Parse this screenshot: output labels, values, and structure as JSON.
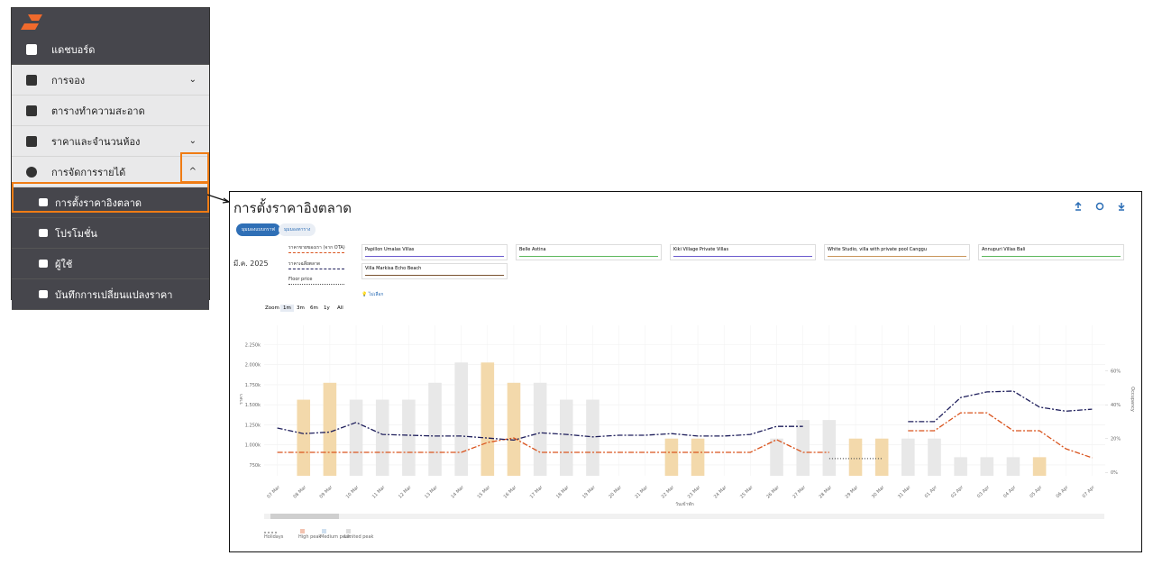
{
  "sidebar": {
    "items": [
      {
        "label": "แดชบอร์ด"
      },
      {
        "label": "การจอง"
      },
      {
        "label": "ตารางทำความสะอาด"
      },
      {
        "label": "ราคาและจำนวนห้อง"
      },
      {
        "label": "การจัดการรายได้"
      },
      {
        "label": "การตั้งราคาอิงตลาด"
      },
      {
        "label": "โปรโมชั่น"
      },
      {
        "label": "ผู้ใช้"
      },
      {
        "label": "บันทึกการเปลี่ยนแปลงราคา"
      }
    ]
  },
  "panel": {
    "title": "การตั้งราคาอิงตลาด",
    "tabs": [
      "มุมมองแบบกราฟ",
      "มุมมองตาราง"
    ],
    "month": "มี.ค. 2025",
    "competitors": [
      {
        "name": "Papillon Umalas Villas",
        "color": "#6a5acd"
      },
      {
        "name": "Belle Astina",
        "color": "#5cb85c"
      },
      {
        "name": "Kiki Village Private Villas",
        "color": "#6a5acd"
      },
      {
        "name": "White Studio, villa with private pool Canggu",
        "color": "#c8955a"
      },
      {
        "name": "Annupuri Villas Bali",
        "color": "#5cb85c"
      },
      {
        "name": "Villa Markisa Echo Beach",
        "color": "#7a5230"
      }
    ],
    "hint": "ไม่เลือก",
    "zoom_label": "Zoom",
    "zoom_options": [
      "1m",
      "3m",
      "6m",
      "1y",
      "All"
    ],
    "bottom_legend": [
      "Holidays",
      "High peak",
      "Medium peak",
      "Limited peak"
    ]
  },
  "chart_data": {
    "type": "bar",
    "categories": [
      "07 Mar",
      "08 Mar",
      "09 Mar",
      "10 Mar",
      "11 Mar",
      "12 Mar",
      "13 Mar",
      "14 Mar",
      "15 Mar",
      "16 Mar",
      "17 Mar",
      "18 Mar",
      "19 Mar",
      "20 Mar",
      "21 Mar",
      "22 Mar",
      "23 Mar",
      "24 Mar",
      "25 Mar",
      "26 Mar",
      "27 Mar",
      "28 Mar",
      "29 Mar",
      "30 Mar",
      "31 Mar",
      "01 Apr",
      "02 Apr",
      "03 Apr",
      "04 Apr",
      "05 Apr",
      "06 Apr",
      "07 Apr"
    ],
    "bars": {
      "axis": "y2",
      "values": [
        null,
        43,
        53,
        43,
        43,
        43,
        53,
        65,
        65,
        53,
        53,
        43,
        43,
        null,
        null,
        20,
        20,
        null,
        null,
        20,
        31,
        31,
        20,
        20,
        20,
        20,
        9,
        9,
        9,
        9,
        null,
        null
      ],
      "colors": [
        "#e8e8e8",
        "#f3d9ab",
        "#f3d9ab",
        "#e8e8e8",
        "#e8e8e8",
        "#e8e8e8",
        "#e8e8e8",
        "#e8e8e8",
        "#f3d9ab",
        "#f3d9ab",
        "#e8e8e8",
        "#e8e8e8",
        "#e8e8e8",
        "#e8e8e8",
        "#e8e8e8",
        "#f3d9ab",
        "#f3d9ab",
        "#e8e8e8",
        "#e8e8e8",
        "#e8e8e8",
        "#e8e8e8",
        "#e8e8e8",
        "#f3d9ab",
        "#f3d9ab",
        "#e8e8e8",
        "#e8e8e8",
        "#e8e8e8",
        "#e8e8e8",
        "#e8e8e8",
        "#f3d9ab",
        "#e8e8e8",
        "#e8e8e8"
      ]
    },
    "series": [
      {
        "name": "ราคาขายของเรา (จาก OTA)",
        "color": "#d9541e",
        "dash": "6 2 2 2",
        "values": [
          907,
          907,
          907,
          907,
          907,
          907,
          907,
          907,
          1030,
          1086,
          907,
          907,
          907,
          907,
          907,
          907,
          907,
          907,
          907,
          1065,
          907,
          907,
          null,
          null,
          1176,
          1176,
          1400,
          1400,
          1176,
          1176,
          952,
          840
        ]
      },
      {
        "name": "ราคาเฉลี่ยตลาด",
        "color": "#1f1f5c",
        "dash": "6 2 2 2",
        "values": [
          1210,
          1140,
          1160,
          1280,
          1130,
          1120,
          1110,
          1110,
          1085,
          1060,
          1150,
          1130,
          1100,
          1120,
          1120,
          1140,
          1110,
          1110,
          1130,
          1230,
          1230,
          null,
          null,
          null,
          1290,
          1290,
          1590,
          1660,
          1670,
          1470,
          1420,
          1445
        ]
      },
      {
        "name": "Floor price",
        "color": "#555555",
        "dash": "1 2",
        "values": [
          null,
          null,
          null,
          null,
          null,
          null,
          null,
          null,
          null,
          null,
          null,
          null,
          null,
          null,
          null,
          null,
          null,
          null,
          null,
          null,
          null,
          830,
          830,
          830,
          null,
          null,
          null,
          null,
          null,
          null,
          null,
          null
        ]
      }
    ],
    "x_label": "วันเข้าพัก",
    "y_label": "ราคา",
    "y2_label": "Occupancy",
    "ylim": [
      615,
      2490
    ],
    "yticks": [
      {
        "value": 750,
        "label": "750k"
      },
      {
        "value": 1000,
        "label": "1.000k"
      },
      {
        "value": 1250,
        "label": "1.250k"
      },
      {
        "value": 1500,
        "label": "1.500k"
      },
      {
        "value": 1750,
        "label": "1.750k"
      },
      {
        "value": 2000,
        "label": "2.000k"
      },
      {
        "value": 2250,
        "label": "2.250k"
      }
    ],
    "y2lim": [
      -2,
      87
    ],
    "y2ticks": [
      {
        "value": 0,
        "label": "0%"
      },
      {
        "value": 20,
        "label": "20%"
      },
      {
        "value": 40,
        "label": "40%"
      },
      {
        "value": 60,
        "label": "60%"
      }
    ],
    "grid": true
  }
}
